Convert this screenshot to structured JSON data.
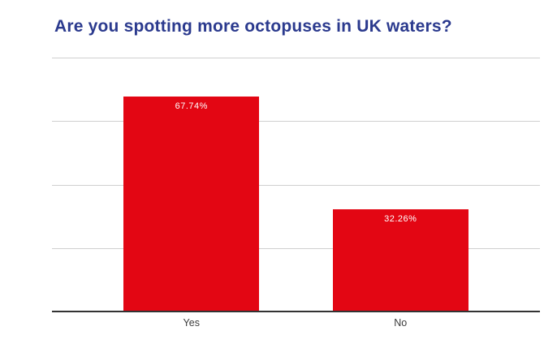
{
  "chart_data": {
    "type": "bar",
    "title": "Are you spotting more octopuses in UK waters?",
    "categories": [
      "Yes",
      "No"
    ],
    "values": [
      67.74,
      32.26
    ],
    "value_labels": [
      "67.74%",
      "32.26%"
    ],
    "xlabel": "",
    "ylabel": "",
    "ylim": [
      0,
      80
    ],
    "gridline_step": 20,
    "y_tick_labels_visible": false,
    "grid": true,
    "legend": "none",
    "colors": {
      "bar": "#e30613",
      "value_label": "#ffffff",
      "title": "#2b3a8e",
      "gridline": "#d0d0d0",
      "axis_line": "#333333",
      "category_label": "#3c3c3c",
      "background": "#ffffff"
    }
  }
}
